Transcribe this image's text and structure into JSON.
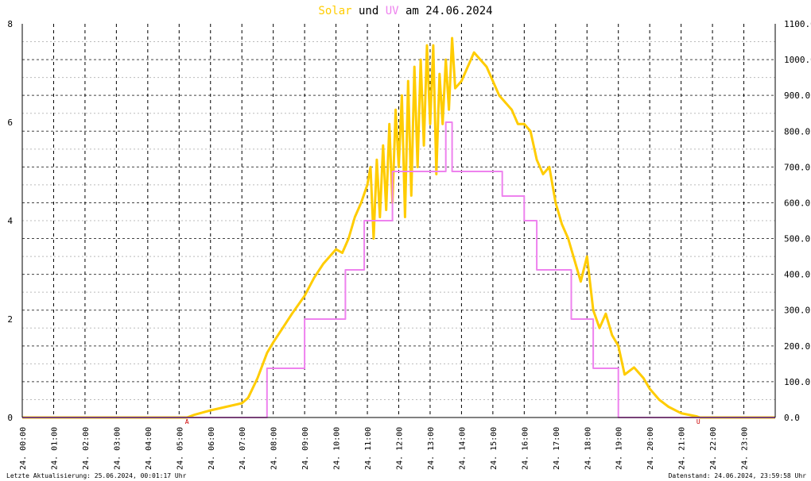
{
  "chart_data": {
    "type": "line",
    "title": {
      "part1": "Solar",
      "part2": " und ",
      "part3": "UV",
      "part4": " am 24.06.2024"
    },
    "colors": {
      "solar": "#ffcc00",
      "uv": "#ee82ee",
      "grid": "#000000",
      "text": "#000000"
    },
    "y_left": {
      "min": 0,
      "max": 8,
      "ticks": [
        "0",
        "2",
        "4",
        "6",
        "8"
      ]
    },
    "y_right": {
      "min": 0,
      "max": 1100,
      "ticks": [
        "0.0",
        "100.0",
        "200.0",
        "300.0",
        "400.0",
        "500.0",
        "600.0",
        "700.0",
        "800.0",
        "900.0",
        "1000.0",
        "1100.0"
      ]
    },
    "x_ticks": [
      "24. 00:00",
      "24. 01:00",
      "24. 02:00",
      "24. 03:00",
      "24. 04:00",
      "24. 05:00",
      "24. 06:00",
      "24. 07:00",
      "24. 08:00",
      "24. 09:00",
      "24. 10:00",
      "24. 11:00",
      "24. 12:00",
      "24. 13:00",
      "24. 14:00",
      "24. 15:00",
      "24. 16:00",
      "24. 17:00",
      "24. 18:00",
      "24. 19:00",
      "24. 20:00",
      "24. 21:00",
      "24. 22:00",
      "24. 23:00"
    ],
    "markers": [
      {
        "label": "A",
        "hour": 5.25
      },
      {
        "label": "U",
        "hour": 21.55
      }
    ],
    "series": [
      {
        "name": "Solar",
        "axis": "right",
        "points": [
          [
            0,
            0
          ],
          [
            5.25,
            0
          ],
          [
            5.5,
            8
          ],
          [
            6,
            20
          ],
          [
            6.5,
            30
          ],
          [
            7,
            40
          ],
          [
            7.2,
            55
          ],
          [
            7.5,
            110
          ],
          [
            7.8,
            180
          ],
          [
            8,
            210
          ],
          [
            8.3,
            250
          ],
          [
            8.6,
            290
          ],
          [
            9,
            340
          ],
          [
            9.3,
            390
          ],
          [
            9.6,
            430
          ],
          [
            10,
            470
          ],
          [
            10.2,
            460
          ],
          [
            10.4,
            500
          ],
          [
            10.6,
            560
          ],
          [
            10.8,
            600
          ],
          [
            11,
            650
          ],
          [
            11.1,
            700
          ],
          [
            11.2,
            500
          ],
          [
            11.3,
            720
          ],
          [
            11.4,
            560
          ],
          [
            11.5,
            760
          ],
          [
            11.6,
            580
          ],
          [
            11.7,
            820
          ],
          [
            11.8,
            600
          ],
          [
            11.9,
            860
          ],
          [
            12,
            700
          ],
          [
            12.1,
            900
          ],
          [
            12.2,
            560
          ],
          [
            12.3,
            940
          ],
          [
            12.4,
            620
          ],
          [
            12.5,
            980
          ],
          [
            12.6,
            700
          ],
          [
            12.7,
            1000
          ],
          [
            12.8,
            760
          ],
          [
            12.9,
            1040
          ],
          [
            13,
            820
          ],
          [
            13.1,
            1040
          ],
          [
            13.2,
            680
          ],
          [
            13.3,
            960
          ],
          [
            13.4,
            820
          ],
          [
            13.5,
            1000
          ],
          [
            13.6,
            860
          ],
          [
            13.7,
            1060
          ],
          [
            13.8,
            920
          ],
          [
            14,
            940
          ],
          [
            14.2,
            980
          ],
          [
            14.4,
            1020
          ],
          [
            14.6,
            1000
          ],
          [
            14.8,
            980
          ],
          [
            15,
            940
          ],
          [
            15.2,
            900
          ],
          [
            15.4,
            880
          ],
          [
            15.6,
            860
          ],
          [
            15.8,
            820
          ],
          [
            16,
            820
          ],
          [
            16.2,
            800
          ],
          [
            16.4,
            720
          ],
          [
            16.6,
            680
          ],
          [
            16.8,
            700
          ],
          [
            17,
            600
          ],
          [
            17.2,
            540
          ],
          [
            17.4,
            500
          ],
          [
            17.6,
            440
          ],
          [
            17.8,
            380
          ],
          [
            18,
            450
          ],
          [
            18.2,
            300
          ],
          [
            18.4,
            250
          ],
          [
            18.6,
            290
          ],
          [
            18.8,
            230
          ],
          [
            19,
            200
          ],
          [
            19.2,
            120
          ],
          [
            19.5,
            140
          ],
          [
            19.8,
            110
          ],
          [
            20,
            80
          ],
          [
            20.3,
            50
          ],
          [
            20.6,
            30
          ],
          [
            21,
            12
          ],
          [
            21.5,
            3
          ],
          [
            21.6,
            0
          ],
          [
            24,
            0
          ]
        ]
      },
      {
        "name": "UV",
        "axis": "left",
        "points": [
          [
            0,
            0
          ],
          [
            7.8,
            0
          ],
          [
            7.8,
            1
          ],
          [
            9,
            1
          ],
          [
            9,
            2
          ],
          [
            10.3,
            2
          ],
          [
            10.3,
            3
          ],
          [
            10.9,
            3
          ],
          [
            10.9,
            4
          ],
          [
            11.8,
            4
          ],
          [
            11.8,
            5
          ],
          [
            13.5,
            5
          ],
          [
            13.5,
            6
          ],
          [
            13.7,
            6
          ],
          [
            13.7,
            5
          ],
          [
            15.3,
            5
          ],
          [
            15.3,
            4.5
          ],
          [
            16,
            4.5
          ],
          [
            16,
            4
          ],
          [
            16.4,
            4
          ],
          [
            16.4,
            3
          ],
          [
            17.5,
            3
          ],
          [
            17.5,
            2
          ],
          [
            18.2,
            2
          ],
          [
            18.2,
            1
          ],
          [
            19,
            1
          ],
          [
            19,
            0
          ],
          [
            24,
            0
          ]
        ]
      }
    ]
  },
  "footer": {
    "left": "Letzte Aktualisierung: 25.06.2024, 00:01:17 Uhr",
    "right": "Datenstand: 24.06.2024, 23:59:58 Uhr"
  }
}
